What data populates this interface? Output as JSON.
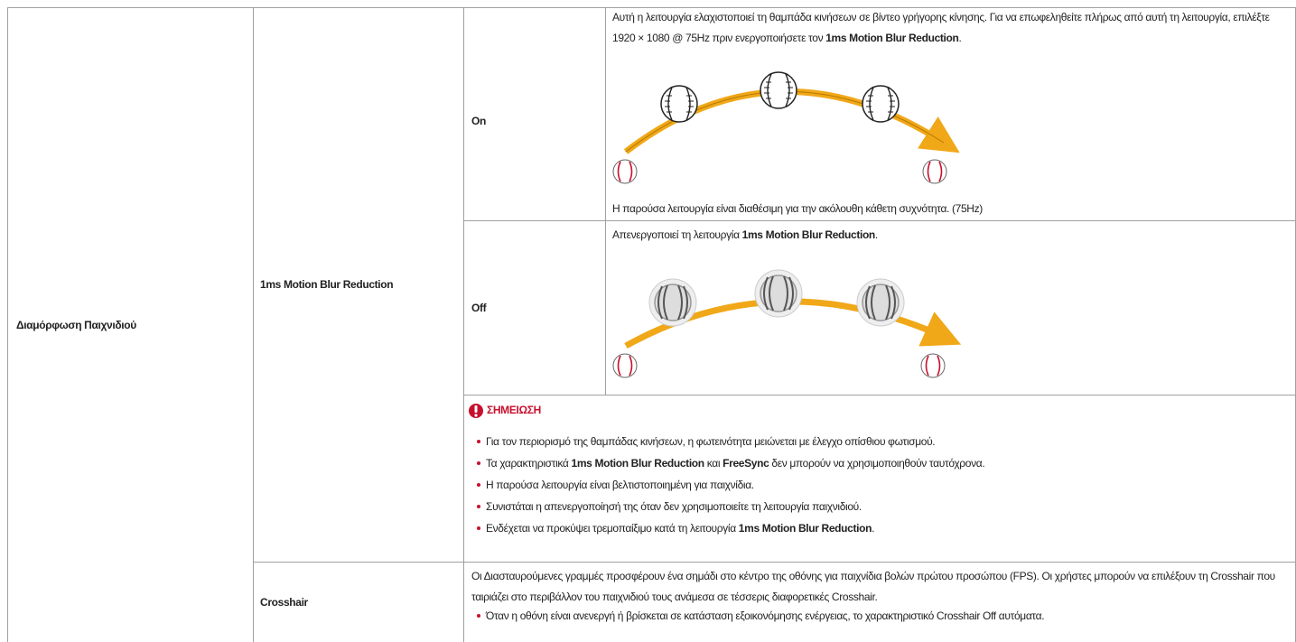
{
  "table": {
    "section": "Διαμόρφωση Παιχνιδιού",
    "rows": [
      {
        "feature": "1ms Motion Blur Reduction",
        "options": [
          {
            "label": "On",
            "description": [
              {
                "text": "Αυτή η λειτουργία ελαχιστοποιεί τη θαμπάδα κινήσεων σε βίντεο γρήγορης κίνησης. Για να επωφεληθείτε πλήρως από αυτή τη λειτουργία, επιλέξτε 1920 × 1080 @ 75Hz πριν ενεργοποιήσετε τον ",
                "bold": false
              },
              {
                "text": "1ms Motion Blur Reduction",
                "bold": true
              },
              {
                "text": ".",
                "bold": false
              }
            ],
            "footnote": "Η παρούσα λειτουργία είναι διαθέσιμη για την ακόλουθη κάθετη συχνότητα. (75Hz)"
          },
          {
            "label": "Off",
            "description": [
              {
                "text": "Απενεργοποιεί τη λειτουργία ",
                "bold": false
              },
              {
                "text": "1ms Motion Blur Reduction",
                "bold": true
              },
              {
                "text": ".",
                "bold": false
              }
            ]
          }
        ],
        "note": {
          "title": "ΣΗΜΕΙΩΣΗ",
          "items": [
            [
              {
                "text": "Για τον περιορισμό της θαμπάδας κινήσεων, η φωτεινότητα μειώνεται με έλεγχο οπίσθιου φωτισμού.",
                "bold": false
              }
            ],
            [
              {
                "text": "Τα χαρακτηριστικά ",
                "bold": false
              },
              {
                "text": "1ms Motion Blur Reduction",
                "bold": true
              },
              {
                "text": " και ",
                "bold": false
              },
              {
                "text": "FreeSync",
                "bold": true
              },
              {
                "text": " δεν μπορούν να χρησιμοποιηθούν ταυτόχρονα.",
                "bold": false
              }
            ],
            [
              {
                "text": "Η παρούσα λειτουργία είναι βελτιστοποιημένη για παιχνίδια.",
                "bold": false
              }
            ],
            [
              {
                "text": "Συνιστάται η απενεργοποίησή της όταν δεν χρησιμοποιείτε τη λειτουργία παιχνιδιού.",
                "bold": false
              }
            ],
            [
              {
                "text": "Ενδέχεται να προκύψει τρεμοπαίξιμο κατά τη λειτουργία ",
                "bold": false
              },
              {
                "text": "1ms Motion Blur Reduction",
                "bold": true
              },
              {
                "text": ".",
                "bold": false
              }
            ]
          ]
        }
      },
      {
        "feature": "Crosshair",
        "description": "Οι Διασταυρούμενες γραμμές προσφέρουν ένα σημάδι στο κέντρο της οθόνης για παιχνίδια βολών πρώτου προσώπου (FPS). Οι χρήστες μπορούν να επιλέξουν τη Crosshair που ταιριάζει στο περιβάλλον του παιχνιδιού τους ανάμεσα σε τέσσερις διαφορετικές Crosshair.",
        "items": [
          "Όταν η οθόνη είναι ανενεργή ή βρίσκεται σε κατάσταση εξοικονόμησης ενέργειας, το χαρακτηριστικό Crosshair Off αυτόματα."
        ]
      }
    ]
  }
}
